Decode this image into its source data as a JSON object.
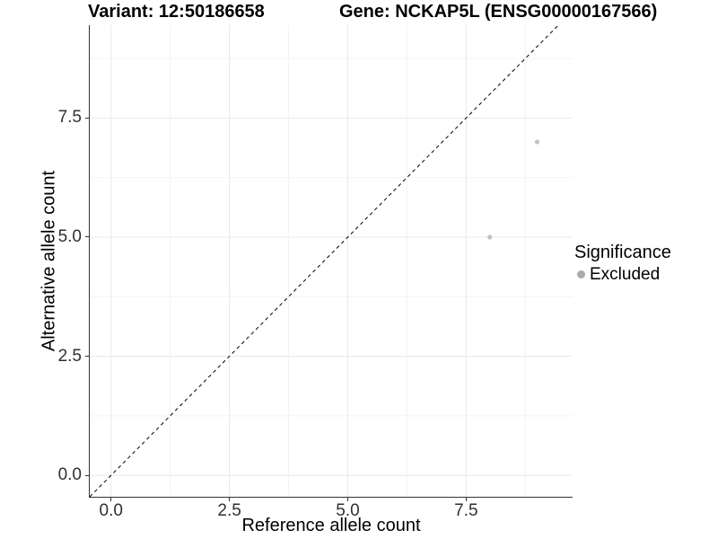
{
  "header": {
    "title_variant": "Variant: 12:50186658",
    "title_gene": "Gene: NCKAP5L (ENSG00000167566)"
  },
  "chart_data": {
    "type": "scatter",
    "title_variant": "Variant: 12:50186658",
    "title_gene": "Gene: NCKAP5L (ENSG00000167566)",
    "xlabel": "Reference allele count",
    "ylabel": "Alternative allele count",
    "xlim": [
      -0.45,
      9.75
    ],
    "ylim": [
      -0.45,
      9.45
    ],
    "x_ticks": [
      0,
      2.5,
      5,
      7.5
    ],
    "x_tick_labels": [
      "0.0",
      "2.5",
      "5.0",
      "7.5"
    ],
    "y_ticks": [
      0,
      2.5,
      5,
      7.5
    ],
    "y_tick_labels": [
      "0.0",
      "2.5",
      "5.0",
      "7.5"
    ],
    "x_minor_ticks": [
      1.25,
      3.75,
      6.25,
      8.75
    ],
    "y_minor_ticks": [
      1.25,
      3.75,
      6.25,
      8.75
    ],
    "grid": "on",
    "identity_line": {
      "from": [
        -0.45,
        -0.45
      ],
      "to": [
        9.45,
        9.45
      ],
      "style": "dashed",
      "color": "#000000"
    },
    "series": [
      {
        "name": "Excluded",
        "color": "#c1c1c1",
        "points": [
          {
            "x": 8,
            "y": 5
          },
          {
            "x": 9,
            "y": 7
          }
        ]
      }
    ],
    "legend": {
      "title": "Significance",
      "position": "right",
      "items": [
        {
          "label": "Excluded",
          "color": "#ababab"
        }
      ]
    }
  },
  "colors": {
    "axis_line": "#333333",
    "tick_label": "#303030",
    "grid_major": "#e8e8e8",
    "grid_minor": "#f3f3f3",
    "background": "#ffffff"
  }
}
